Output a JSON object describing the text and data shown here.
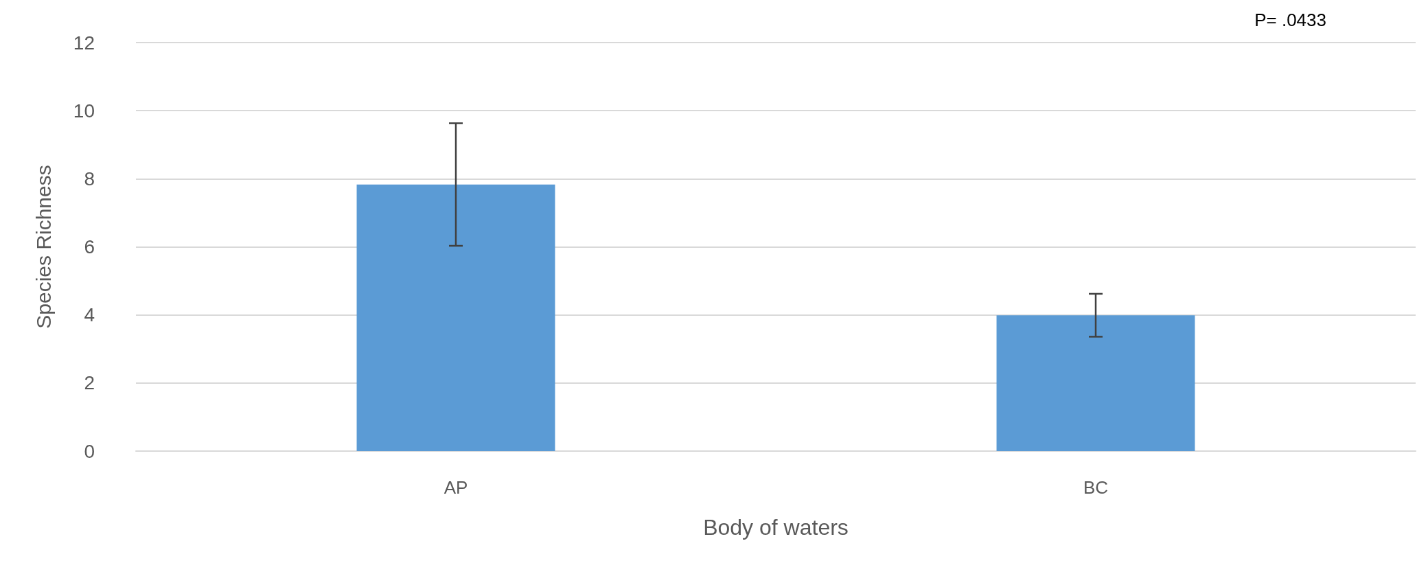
{
  "chart_data": {
    "type": "bar",
    "xlabel": "Body of waters",
    "ylabel": "Species Richness",
    "categories": [
      "AP",
      "BC"
    ],
    "series": [
      {
        "color": "#5b9bd5",
        "values": [
          7.83,
          3.99
        ],
        "errors": [
          1.8,
          0.63
        ]
      }
    ],
    "ylim": [
      0,
      12
    ],
    "yticks": [
      0,
      2,
      4,
      6,
      8,
      10,
      12
    ],
    "grid": "y",
    "annotations": [
      "P= .0433"
    ]
  }
}
